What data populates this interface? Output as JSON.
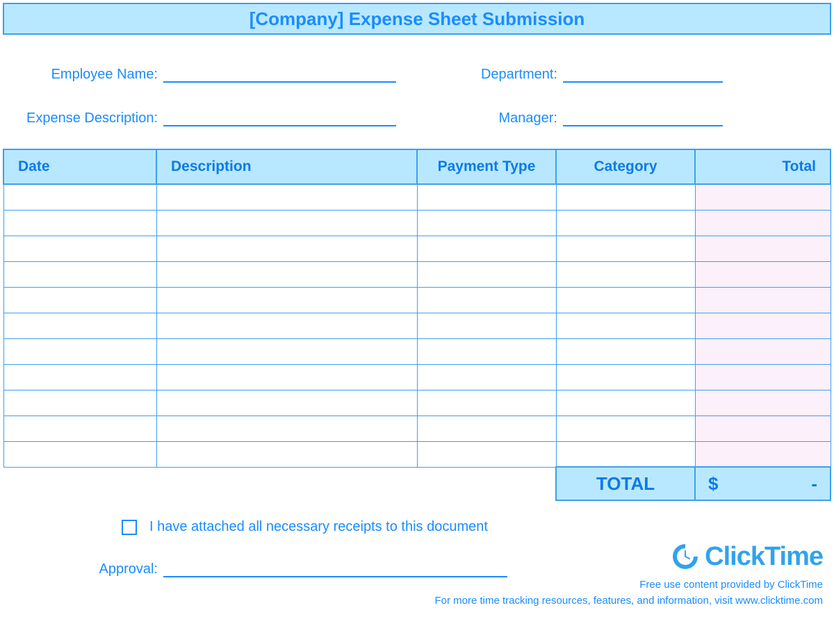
{
  "colors": {
    "primary": "#1a8cff",
    "header_bg": "#b8e8ff",
    "border": "#3d9ff0",
    "total_cell_bg": "#fcf0fa",
    "logo": "#31a3ed"
  },
  "title": "[Company] Expense Sheet Submission",
  "fields": {
    "employee_name": {
      "label": "Employee Name:",
      "value": ""
    },
    "department": {
      "label": "Department:",
      "value": ""
    },
    "expense_description": {
      "label": "Expense Description:",
      "value": ""
    },
    "manager": {
      "label": "Manager:",
      "value": ""
    }
  },
  "table": {
    "columns": [
      "Date",
      "Description",
      "Payment Type",
      "Category",
      "Total"
    ],
    "rows": [
      [
        "",
        "",
        "",
        "",
        ""
      ],
      [
        "",
        "",
        "",
        "",
        ""
      ],
      [
        "",
        "",
        "",
        "",
        ""
      ],
      [
        "",
        "",
        "",
        "",
        ""
      ],
      [
        "",
        "",
        "",
        "",
        ""
      ],
      [
        "",
        "",
        "",
        "",
        ""
      ],
      [
        "",
        "",
        "",
        "",
        ""
      ],
      [
        "",
        "",
        "",
        "",
        ""
      ],
      [
        "",
        "",
        "",
        "",
        ""
      ],
      [
        "",
        "",
        "",
        "",
        ""
      ],
      [
        "",
        "",
        "",
        "",
        ""
      ]
    ],
    "total_label": "TOTAL",
    "total_currency": "$",
    "total_value": "-"
  },
  "receipts_checkbox": {
    "checked": false,
    "label": "I have attached all necessary receipts to this document"
  },
  "approval": {
    "label": "Approval:",
    "value": ""
  },
  "footer": {
    "logo_text": "ClickTime",
    "line1": "Free use content provided by ClickTime",
    "line2": "For more time tracking resources, features, and information, visit www.clicktime.com"
  }
}
